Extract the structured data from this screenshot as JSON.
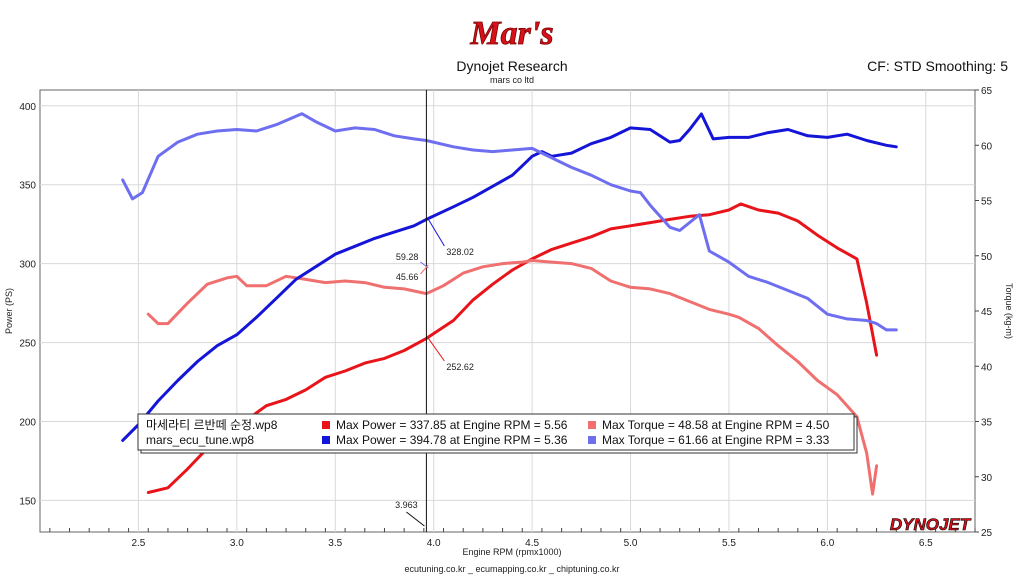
{
  "header": {
    "logo_text": "Mar's",
    "title": "Dynojet Research",
    "subtitle": "mars co ltd",
    "cf_text": "CF: STD Smoothing: 5"
  },
  "footer": {
    "sites": "ecutuning.co.kr _ ecumapping.co.kr _ chiptuning.co.kr",
    "brand": "DYNOJET"
  },
  "colors": {
    "run1_power": "#e8141a",
    "run1_torque": "#f07070",
    "run2_power": "#1515d8",
    "run2_torque": "#6e6ef0"
  },
  "chart_data": {
    "type": "line",
    "xlabel": "Engine RPM (rpmx1000)",
    "ylabel_left": "Power (PS)",
    "ylabel_right": "Torque (kg-m)",
    "xlim": [
      2.0,
      6.75
    ],
    "ylim_left": [
      130,
      410
    ],
    "ylim_right": [
      25,
      65
    ],
    "x_ticks": [
      "2.5",
      "3.0",
      "3.5",
      "4.0",
      "4.5",
      "5.0",
      "5.5",
      "6.0",
      "6.5"
    ],
    "y_left_ticks": [
      "400",
      "350",
      "300",
      "250",
      "200",
      "150"
    ],
    "y_right_ticks": [
      "65",
      "60",
      "55",
      "50",
      "45",
      "40",
      "35",
      "30",
      "25"
    ],
    "grid": true,
    "cursor": {
      "x": 3.963,
      "label": "3.963",
      "readouts": [
        {
          "value": "328.02",
          "series": "run2_power"
        },
        {
          "value": "59.28",
          "series": "run2_torque"
        },
        {
          "value": "45.66",
          "series": "run1_torque"
        },
        {
          "value": "252.62",
          "series": "run1_power"
        }
      ]
    },
    "series": [
      {
        "key": "run1_power",
        "axis": "left",
        "x": [
          2.55,
          2.65,
          2.75,
          2.85,
          2.95,
          3.05,
          3.15,
          3.25,
          3.35,
          3.45,
          3.55,
          3.65,
          3.75,
          3.85,
          3.963,
          4.1,
          4.2,
          4.3,
          4.4,
          4.5,
          4.6,
          4.7,
          4.8,
          4.9,
          5.0,
          5.1,
          5.2,
          5.3,
          5.4,
          5.5,
          5.56,
          5.65,
          5.75,
          5.85,
          5.95,
          6.05,
          6.15,
          6.2,
          6.25
        ],
        "y": [
          155,
          158,
          170,
          183,
          193,
          201,
          210,
          214,
          220,
          228,
          232,
          237,
          240,
          245,
          252.62,
          264,
          277,
          287,
          296,
          303,
          309,
          313,
          317,
          322,
          324,
          326,
          328,
          330,
          331,
          334,
          337.85,
          334,
          332,
          327,
          318,
          310,
          303,
          275,
          242
        ]
      },
      {
        "key": "run1_torque",
        "axis": "left",
        "x": [
          2.55,
          2.6,
          2.65,
          2.75,
          2.85,
          2.95,
          3.0,
          3.05,
          3.15,
          3.25,
          3.35,
          3.45,
          3.55,
          3.65,
          3.75,
          3.85,
          3.963,
          4.05,
          4.15,
          4.25,
          4.35,
          4.45,
          4.5,
          4.6,
          4.7,
          4.8,
          4.9,
          5.0,
          5.1,
          5.2,
          5.3,
          5.4,
          5.5,
          5.55,
          5.65,
          5.75,
          5.85,
          5.95,
          6.05,
          6.15,
          6.2,
          6.23,
          6.25
        ],
        "y": [
          268,
          262,
          262,
          275,
          287,
          291,
          292,
          286,
          286,
          292,
          290,
          288,
          289,
          288,
          285,
          284,
          281,
          286,
          294,
          298,
          300,
          301,
          302,
          301,
          300,
          297,
          289,
          285,
          284,
          281,
          276,
          271,
          268,
          266,
          259,
          248,
          238,
          226,
          217,
          203,
          180,
          154,
          172
        ]
      },
      {
        "key": "run2_power",
        "axis": "left",
        "x": [
          2.42,
          2.5,
          2.6,
          2.7,
          2.8,
          2.9,
          3.0,
          3.1,
          3.2,
          3.3,
          3.4,
          3.5,
          3.6,
          3.7,
          3.8,
          3.9,
          3.963,
          4.1,
          4.2,
          4.3,
          4.4,
          4.45,
          4.5,
          4.55,
          4.6,
          4.7,
          4.8,
          4.9,
          5.0,
          5.1,
          5.2,
          5.25,
          5.3,
          5.36,
          5.42,
          5.5,
          5.6,
          5.7,
          5.8,
          5.9,
          6.0,
          6.1,
          6.2,
          6.3,
          6.35
        ],
        "y": [
          188,
          198,
          213,
          226,
          238,
          248,
          255,
          266,
          278,
          290,
          298,
          306,
          311,
          316,
          320,
          324,
          328.02,
          336,
          342,
          349,
          356,
          362,
          368,
          371,
          368,
          370,
          376,
          380,
          386,
          385,
          377,
          378,
          385,
          394.78,
          379,
          380,
          380,
          383,
          385,
          381,
          380,
          382,
          378,
          375,
          374
        ]
      },
      {
        "key": "run2_torque",
        "axis": "left",
        "x": [
          2.42,
          2.47,
          2.52,
          2.6,
          2.7,
          2.8,
          2.9,
          3.0,
          3.1,
          3.2,
          3.33,
          3.4,
          3.5,
          3.6,
          3.7,
          3.8,
          3.9,
          3.963,
          4.1,
          4.2,
          4.3,
          4.4,
          4.5,
          4.6,
          4.7,
          4.8,
          4.9,
          5.0,
          5.05,
          5.1,
          5.2,
          5.25,
          5.35,
          5.4,
          5.5,
          5.6,
          5.7,
          5.8,
          5.9,
          6.0,
          6.1,
          6.2,
          6.25,
          6.3,
          6.35
        ],
        "y": [
          353,
          341,
          345,
          368,
          377,
          382,
          384,
          385,
          384,
          388,
          395,
          390,
          384,
          386,
          385,
          381,
          379,
          378,
          374,
          372,
          371,
          372,
          373,
          367,
          361,
          356,
          350,
          346,
          345,
          337,
          323,
          321,
          331,
          308,
          301,
          292,
          288,
          283,
          278,
          268,
          265,
          264,
          262,
          258,
          258
        ]
      }
    ],
    "legend": [
      {
        "file": "마세라티 르반떼 순정.wp8",
        "power_text": "Max Power = 337.85 at Engine RPM = 5.56",
        "torque_text": "Max Torque = 48.58 at Engine RPM = 4.50",
        "power_key": "run1_power",
        "torque_key": "run1_torque"
      },
      {
        "file": "mars_ecu_tune.wp8",
        "power_text": "Max Power = 394.78 at Engine RPM = 5.36",
        "torque_text": "Max Torque = 61.66 at Engine RPM = 3.33",
        "power_key": "run2_power",
        "torque_key": "run2_torque"
      }
    ]
  }
}
